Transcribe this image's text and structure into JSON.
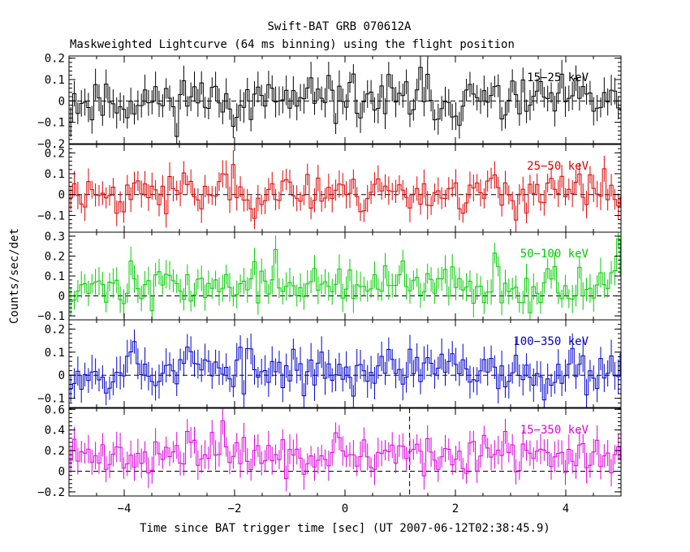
{
  "chart_data": {
    "type": "line",
    "title": "Swift-BAT GRB 070612A",
    "subtitle": "Maskweighted Lightcurve (64 ms binning) using the flight position",
    "xlabel": "Time since BAT trigger time [sec] (UT 2007-06-12T02:38:45.9)",
    "ylabel": "Counts/sec/det",
    "xlim": [
      -5,
      5
    ],
    "xticks": [
      -4,
      -2,
      0,
      2,
      4
    ],
    "xtick_labels": [
      "−4",
      "−2",
      "0",
      "2",
      "4"
    ],
    "bin_width_sec": 0.064,
    "marker_line_x": 1.17,
    "panels": [
      {
        "name": "15-25 keV",
        "label": "15−25 keV",
        "color": "#000000",
        "ylim": [
          -0.2,
          0.21
        ],
        "yticks": [
          -0.2,
          -0.1,
          0,
          0.1,
          0.2
        ],
        "ytick_labels": [
          "−0.2",
          "−0.1",
          "0",
          "0.1",
          "0.2"
        ],
        "mean": 0.0,
        "noise": 0.055,
        "err": 0.06,
        "seed": 11,
        "peaks": [
          [
            -2.8,
            0.1
          ],
          [
            0.05,
            0.12
          ],
          [
            1.3,
            0.09
          ]
        ]
      },
      {
        "name": "25-50 keV",
        "label": "25−50 keV",
        "color": "#dd0000",
        "ylim": [
          -0.18,
          0.24
        ],
        "yticks": [
          -0.1,
          0,
          0.1,
          0.2
        ],
        "ytick_labels": [
          "−0.1",
          "0",
          "0.1",
          "0.2"
        ],
        "mean": 0.01,
        "noise": 0.05,
        "err": 0.055,
        "seed": 23,
        "peaks": [
          [
            -2.25,
            0.14
          ],
          [
            -1.35,
            0.09
          ],
          [
            0.55,
            0.08
          ]
        ]
      },
      {
        "name": "50-100 keV",
        "label": "50−100 keV",
        "color": "#00cc00",
        "ylim": [
          -0.12,
          0.32
        ],
        "yticks": [
          -0.1,
          0,
          0.1,
          0.2,
          0.3
        ],
        "ytick_labels": [
          "−0.1",
          "0",
          "0.1",
          "0.2",
          "0.3"
        ],
        "mean": 0.05,
        "noise": 0.05,
        "err": 0.06,
        "seed": 37,
        "peaks": [
          [
            -1.3,
            0.16
          ],
          [
            2.7,
            0.08
          ],
          [
            4.9,
            0.12
          ]
        ]
      },
      {
        "name": "100-350 keV",
        "label": "100−350 keV",
        "color": "#0000cc",
        "ylim": [
          -0.14,
          0.24
        ],
        "yticks": [
          -0.1,
          0,
          0.1,
          0.2
        ],
        "ytick_labels": [
          "−0.1",
          "0",
          "0.1",
          "0.2"
        ],
        "mean": 0.02,
        "noise": 0.05,
        "err": 0.06,
        "seed": 53,
        "peaks": [
          [
            -3.9,
            0.12
          ],
          [
            -2.85,
            0.13
          ],
          [
            4.8,
            0.1
          ]
        ]
      },
      {
        "name": "15-350 keV",
        "label": "15−350 keV",
        "color": "#dd00dd",
        "ylim": [
          -0.24,
          0.61
        ],
        "yticks": [
          -0.2,
          0,
          0.2,
          0.4,
          0.6
        ],
        "ytick_labels": [
          "−0.2",
          "0",
          "0.2",
          "0.4",
          "0.6"
        ],
        "mean": 0.15,
        "noise": 0.09,
        "err": 0.12,
        "seed": 71,
        "peaks": [
          [
            -2.25,
            0.3
          ],
          [
            -2.8,
            0.22
          ],
          [
            -0.15,
            0.12
          ]
        ]
      }
    ]
  }
}
